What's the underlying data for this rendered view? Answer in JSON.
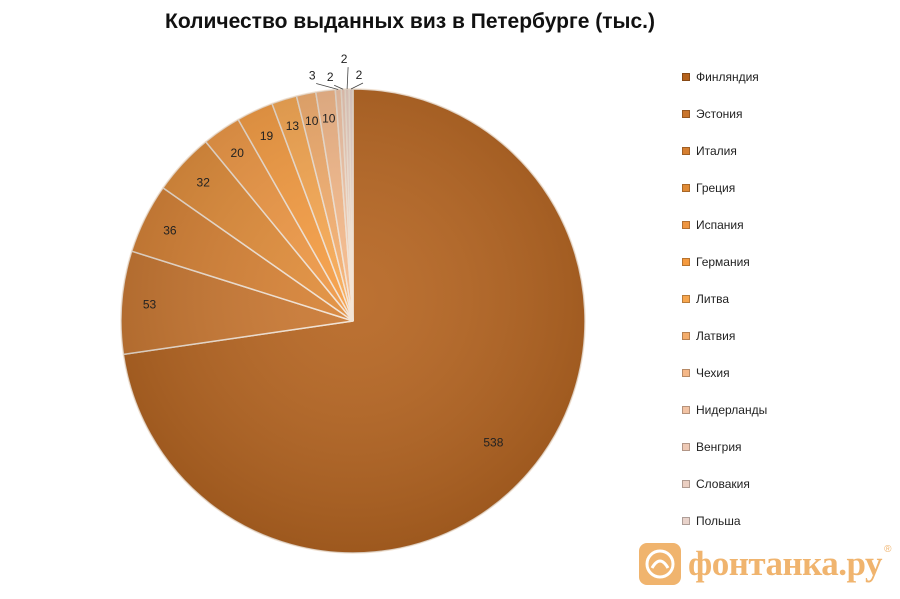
{
  "chart_data": {
    "type": "pie",
    "title": "Количество выданных виз в Петербурге (тыс.)",
    "categories": [
      "Финляндия",
      "Эстония",
      "Италия",
      "Греция",
      "Испания",
      "Германия",
      "Литва",
      "Латвия",
      "Чехия",
      "Нидерланды",
      "Венгрия",
      "Словакия",
      "Польша"
    ],
    "values": [
      538,
      53,
      36,
      32,
      20,
      19,
      13,
      10,
      10,
      3,
      2,
      2,
      2
    ],
    "colors": [
      "#b5621c",
      "#c9752d",
      "#d67f30",
      "#e08a35",
      "#ee9540",
      "#f59a3e",
      "#f7a64e",
      "#f4ad6c",
      "#f5b888",
      "#f2c3a4",
      "#eec9b5",
      "#ebcfc2",
      "#e9d3cb"
    ],
    "legend": "right"
  },
  "watermark": {
    "text": "фонтанка.ру",
    "reg": "®"
  }
}
